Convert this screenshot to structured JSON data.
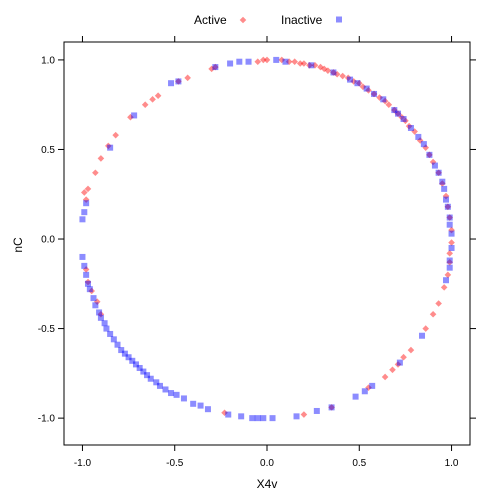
{
  "chart_data": {
    "type": "scatter",
    "title": "",
    "xlabel": "X4v",
    "ylabel": "nC",
    "xlim": [
      -1.1,
      1.1
    ],
    "ylim": [
      -1.15,
      1.1
    ],
    "xticks": [
      -1.0,
      -0.5,
      0.0,
      0.5,
      1.0
    ],
    "yticks": [
      -1.0,
      -0.5,
      0.0,
      0.5,
      1.0
    ],
    "xtick_labels": [
      "-1.0",
      "-0.5",
      "0.0",
      "0.5",
      "1.0"
    ],
    "ytick_labels": [
      "-1.0",
      "-0.5",
      "0.0",
      "0.5",
      "1.0"
    ],
    "grid": false,
    "legend_position": "top",
    "series": [
      {
        "name": "Active",
        "marker": "diamond",
        "color": "#ff0000",
        "points": [
          [
            -0.3,
            0.95
          ],
          [
            -0.28,
            0.96
          ],
          [
            -0.05,
            0.99
          ],
          [
            -0.02,
            1.0
          ],
          [
            0.0,
            1.0
          ],
          [
            0.08,
            1.0
          ],
          [
            0.12,
            0.99
          ],
          [
            0.15,
            0.99
          ],
          [
            0.18,
            0.98
          ],
          [
            0.2,
            0.98
          ],
          [
            0.23,
            0.97
          ],
          [
            0.26,
            0.97
          ],
          [
            0.29,
            0.96
          ],
          [
            0.31,
            0.95
          ],
          [
            0.33,
            0.94
          ],
          [
            0.36,
            0.93
          ],
          [
            0.38,
            0.92
          ],
          [
            0.41,
            0.91
          ],
          [
            0.44,
            0.9
          ],
          [
            0.47,
            0.88
          ],
          [
            0.5,
            0.87
          ],
          [
            0.52,
            0.85
          ],
          [
            0.55,
            0.83
          ],
          [
            0.58,
            0.81
          ],
          [
            0.61,
            0.79
          ],
          [
            0.64,
            0.77
          ],
          [
            0.66,
            0.75
          ],
          [
            0.69,
            0.72
          ],
          [
            0.71,
            0.7
          ],
          [
            0.73,
            0.68
          ],
          [
            0.75,
            0.66
          ],
          [
            0.77,
            0.63
          ],
          [
            0.8,
            0.6
          ],
          [
            0.83,
            0.55
          ],
          [
            0.86,
            0.51
          ],
          [
            0.88,
            0.47
          ],
          [
            0.9,
            0.43
          ],
          [
            0.93,
            0.37
          ],
          [
            0.95,
            0.31
          ],
          [
            0.97,
            0.24
          ],
          [
            0.98,
            0.18
          ],
          [
            0.99,
            0.12
          ],
          [
            1.0,
            0.05
          ],
          [
            1.0,
            -0.02
          ],
          [
            0.99,
            -0.08
          ],
          [
            0.99,
            -0.13
          ],
          [
            0.98,
            -0.2
          ],
          [
            0.96,
            -0.27
          ],
          [
            0.93,
            -0.36
          ],
          [
            0.9,
            -0.42
          ],
          [
            0.86,
            -0.5
          ],
          [
            0.78,
            -0.62
          ],
          [
            0.74,
            -0.66
          ],
          [
            0.71,
            -0.7
          ],
          [
            0.68,
            -0.73
          ],
          [
            0.64,
            -0.77
          ],
          [
            0.55,
            -0.83
          ],
          [
            -0.99,
            0.26
          ],
          [
            -0.98,
            0.22
          ],
          [
            -0.97,
            0.28
          ],
          [
            -0.93,
            0.37
          ],
          [
            -0.9,
            0.45
          ],
          [
            -0.86,
            0.52
          ],
          [
            -0.82,
            0.58
          ],
          [
            -0.74,
            0.68
          ],
          [
            -0.66,
            0.75
          ],
          [
            -0.62,
            0.78
          ],
          [
            -0.59,
            0.8
          ],
          [
            -0.48,
            0.88
          ],
          [
            -0.43,
            0.9
          ],
          [
            -0.98,
            -0.17
          ],
          [
            -0.97,
            -0.24
          ],
          [
            -0.95,
            -0.29
          ],
          [
            -0.92,
            -0.35
          ],
          [
            -0.9,
            -0.42
          ],
          [
            -0.23,
            -0.97
          ],
          [
            0.2,
            -0.98
          ],
          [
            0.35,
            -0.94
          ]
        ]
      },
      {
        "name": "Inactive",
        "marker": "square",
        "color": "#0000ff",
        "points": [
          [
            -0.28,
            0.96
          ],
          [
            -0.2,
            0.98
          ],
          [
            -0.15,
            0.99
          ],
          [
            -0.1,
            0.99
          ],
          [
            0.05,
            1.0
          ],
          [
            0.1,
            0.99
          ],
          [
            0.24,
            0.97
          ],
          [
            0.36,
            0.93
          ],
          [
            0.45,
            0.89
          ],
          [
            0.49,
            0.87
          ],
          [
            0.54,
            0.84
          ],
          [
            0.58,
            0.81
          ],
          [
            0.63,
            0.78
          ],
          [
            0.69,
            0.72
          ],
          [
            0.71,
            0.7
          ],
          [
            0.74,
            0.67
          ],
          [
            0.78,
            0.62
          ],
          [
            0.82,
            0.57
          ],
          [
            0.85,
            0.53
          ],
          [
            0.88,
            0.47
          ],
          [
            0.91,
            0.41
          ],
          [
            0.93,
            0.37
          ],
          [
            0.95,
            0.32
          ],
          [
            0.96,
            0.28
          ],
          [
            0.97,
            0.22
          ],
          [
            0.98,
            0.18
          ],
          [
            0.99,
            0.12
          ],
          [
            0.99,
            0.08
          ],
          [
            1.0,
            0.03
          ],
          [
            1.0,
            -0.05
          ],
          [
            0.99,
            -0.12
          ],
          [
            0.99,
            -0.16
          ],
          [
            0.97,
            -0.23
          ],
          [
            0.84,
            -0.54
          ],
          [
            0.72,
            -0.69
          ],
          [
            0.57,
            -0.82
          ],
          [
            0.53,
            -0.85
          ],
          [
            0.48,
            -0.88
          ],
          [
            0.35,
            -0.94
          ],
          [
            0.27,
            -0.96
          ],
          [
            0.16,
            -0.99
          ],
          [
            0.03,
            -1.0
          ],
          [
            -0.02,
            -1.0
          ],
          [
            -0.05,
            -1.0
          ],
          [
            -0.08,
            -1.0
          ],
          [
            -0.14,
            -0.99
          ],
          [
            -0.21,
            -0.98
          ],
          [
            -0.32,
            -0.95
          ],
          [
            -0.36,
            -0.93
          ],
          [
            -0.4,
            -0.92
          ],
          [
            -0.45,
            -0.89
          ],
          [
            -0.49,
            -0.87
          ],
          [
            -0.52,
            -0.86
          ],
          [
            -0.55,
            -0.84
          ],
          [
            -0.58,
            -0.82
          ],
          [
            -0.6,
            -0.8
          ],
          [
            -0.63,
            -0.78
          ],
          [
            -0.65,
            -0.76
          ],
          [
            -0.67,
            -0.74
          ],
          [
            -0.69,
            -0.72
          ],
          [
            -0.71,
            -0.7
          ],
          [
            -0.73,
            -0.68
          ],
          [
            -0.75,
            -0.66
          ],
          [
            -0.77,
            -0.64
          ],
          [
            -0.79,
            -0.62
          ],
          [
            -0.81,
            -0.59
          ],
          [
            -0.83,
            -0.56
          ],
          [
            -0.85,
            -0.53
          ],
          [
            -0.87,
            -0.5
          ],
          [
            -0.88,
            -0.47
          ],
          [
            -0.9,
            -0.44
          ],
          [
            -0.91,
            -0.41
          ],
          [
            -0.93,
            -0.37
          ],
          [
            -0.94,
            -0.33
          ],
          [
            -0.96,
            -0.28
          ],
          [
            -0.97,
            -0.25
          ],
          [
            -0.98,
            -0.2
          ],
          [
            -0.99,
            -0.15
          ],
          [
            -1.0,
            -0.1
          ],
          [
            -1.0,
            0.11
          ],
          [
            -0.99,
            0.15
          ],
          [
            -0.98,
            0.2
          ],
          [
            -0.85,
            0.51
          ],
          [
            -0.72,
            0.69
          ],
          [
            -0.52,
            0.87
          ],
          [
            -0.48,
            0.88
          ]
        ]
      }
    ]
  }
}
